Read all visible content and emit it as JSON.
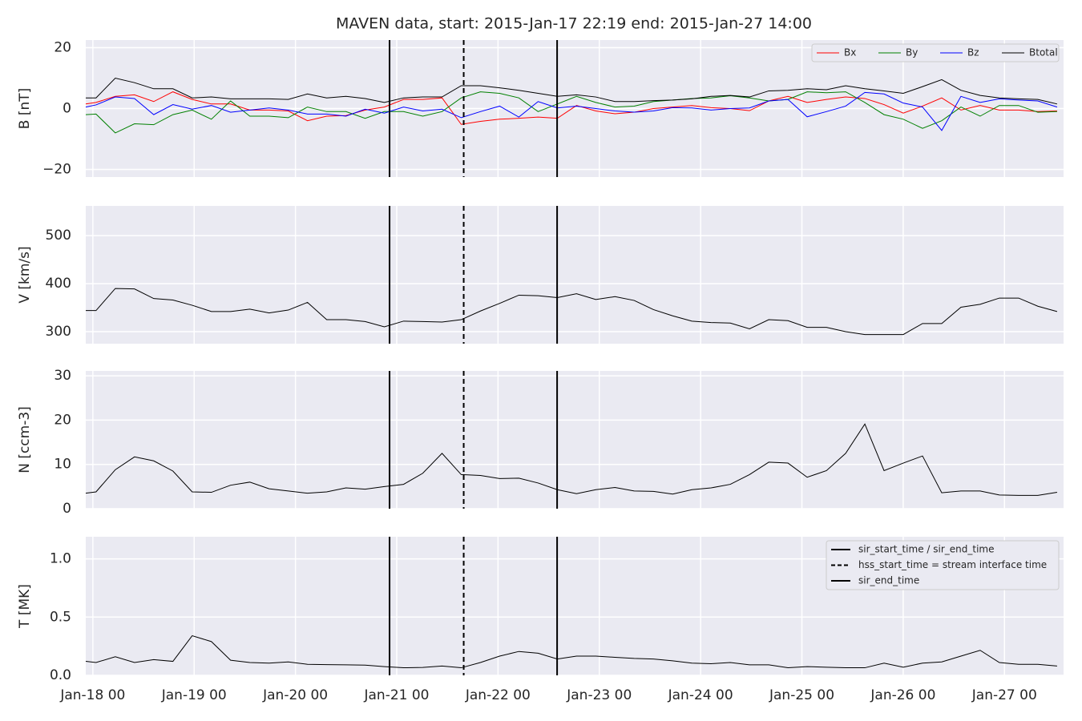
{
  "chart_data": [
    {
      "type": "line",
      "title": "MAVEN data, start: 2015-Jan-17 22:19  end: 2015-Jan-27 14:00",
      "ylabel": "B [nT]",
      "ylim": [
        -22.5,
        22.5
      ],
      "yticks": [
        {
          "value": -20,
          "label": "−20"
        },
        0,
        20
      ],
      "grid": true,
      "legend": "upper right",
      "series": [
        {
          "name": "Bx",
          "color": "#ff0000",
          "values": [
            1.5,
            2,
            4,
            4.5,
            2.3,
            5.5,
            3,
            1.5,
            1.5,
            -0.5,
            -0.5,
            -0.8,
            -4,
            -2.5,
            -2.3,
            -0.5,
            0.5,
            3,
            3,
            3.5,
            -5.2,
            -4.2,
            -3.5,
            -3.2,
            -2.8,
            -3.2,
            1,
            -0.8,
            -1.7,
            -1.2,
            0,
            0.5,
            1,
            0.3,
            0,
            -0.7,
            2.5,
            4,
            2,
            3,
            3.8,
            3.3,
            1.3,
            -1.5,
            0.8,
            3.5,
            -0.5,
            1,
            -0.5,
            -0.5,
            -1,
            -0.8
          ]
        },
        {
          "name": "By",
          "color": "#008000",
          "values": [
            -2,
            -1.8,
            -8,
            -5,
            -5.3,
            -2,
            -0.5,
            -3.5,
            2.5,
            -2.5,
            -2.5,
            -3,
            0.5,
            -1,
            -1,
            -3.2,
            -1,
            -1,
            -2.5,
            -1,
            3.5,
            5.5,
            5,
            3.5,
            -1,
            1.5,
            4,
            2,
            0.5,
            0.8,
            2.3,
            2.8,
            3.3,
            3.5,
            4.2,
            3.5,
            2.5,
            3,
            5.5,
            5.2,
            5.5,
            2,
            -2,
            -3.5,
            -6.5,
            -4,
            0.5,
            -2.5,
            1,
            1,
            -1.2,
            -1
          ]
        },
        {
          "name": "Bz",
          "color": "#0000ff",
          "values": [
            0.5,
            1.2,
            3.8,
            3.3,
            -2,
            1.3,
            -0.2,
            1,
            -1.2,
            -0.5,
            0.2,
            -0.5,
            -1.8,
            -1.8,
            -2.5,
            -0.2,
            -1.5,
            0.5,
            -0.8,
            -0.2,
            -3,
            -1,
            0.8,
            -2.8,
            2.3,
            0.2,
            0.8,
            0,
            -0.8,
            -1.2,
            -0.8,
            0.3,
            0.2,
            -0.5,
            0,
            0.2,
            2.5,
            3,
            -2.7,
            -1,
            0.8,
            5.3,
            4.8,
            1.8,
            0.5,
            -7.2,
            4,
            2,
            3.2,
            2.8,
            2.5,
            0.5
          ]
        },
        {
          "name": "Btotal",
          "color": "#000000",
          "values": [
            3.5,
            3.5,
            10,
            8.5,
            6.5,
            6.5,
            3.5,
            3.8,
            3.2,
            3.2,
            3.2,
            3.0,
            4.8,
            3.5,
            4.0,
            3.3,
            2.0,
            3.5,
            3.8,
            3.8,
            7.5,
            7.5,
            6.8,
            6.0,
            5.0,
            4.0,
            4.5,
            3.8,
            2.3,
            2.3,
            2.6,
            2.8,
            3.2,
            4.0,
            4.3,
            3.8,
            5.8,
            6.0,
            6.5,
            6.2,
            7.5,
            6.5,
            5.8,
            5.0,
            7.2,
            9.5,
            6.0,
            4.3,
            3.5,
            3.2,
            3.0,
            1.5
          ]
        }
      ]
    },
    {
      "type": "line",
      "ylabel": "V [km/s]",
      "ylim": [
        275,
        562
      ],
      "yticks": [
        300,
        400,
        500
      ],
      "grid": true,
      "color": "#000000",
      "values": [
        344,
        344,
        390,
        389,
        369,
        366,
        355,
        342,
        342,
        347,
        339,
        345,
        361,
        325,
        325,
        321,
        310,
        322,
        321,
        320,
        325,
        343,
        359,
        376,
        375,
        371,
        379,
        367,
        373,
        365,
        346,
        333,
        322,
        319,
        318,
        306,
        325,
        323,
        309,
        309,
        300,
        294,
        294,
        294,
        317,
        317,
        351,
        357,
        370,
        370,
        353,
        342
      ]
    },
    {
      "type": "line",
      "ylabel": "N [ccm-3]",
      "ylim": [
        0,
        31.1
      ],
      "yticks": [
        0,
        10,
        20,
        30
      ],
      "grid": true,
      "color": "#000000",
      "values": [
        3.5,
        3.8,
        8.8,
        11.7,
        10.8,
        8.5,
        3.8,
        3.7,
        5.3,
        6.0,
        4.5,
        4.0,
        3.5,
        3.8,
        4.7,
        4.4,
        5.0,
        5.5,
        8.0,
        12.5,
        7.7,
        7.5,
        6.8,
        6.9,
        5.8,
        4.3,
        3.4,
        4.3,
        4.8,
        4.0,
        3.9,
        3.3,
        4.3,
        4.7,
        5.5,
        7.7,
        10.5,
        10.3,
        7.1,
        8.6,
        12.5,
        19.1,
        8.6,
        10.3,
        11.9,
        3.6,
        4.0,
        4.0,
        3.1,
        3.0,
        3.0,
        3.7
      ]
    },
    {
      "type": "line",
      "ylabel": "T [MK]",
      "ylim": [
        0,
        1.19
      ],
      "yticks": [
        {
          "value": 0,
          "label": "0.0"
        },
        0.5,
        {
          "value": 1,
          "label": "1.0"
        }
      ],
      "grid": true,
      "color": "#000000",
      "legend": "upper right",
      "values": [
        0.12,
        0.11,
        0.16,
        0.11,
        0.135,
        0.12,
        0.34,
        0.29,
        0.13,
        0.11,
        0.105,
        0.115,
        0.095,
        0.092,
        0.09,
        0.088,
        0.075,
        0.065,
        0.068,
        0.08,
        0.065,
        0.11,
        0.165,
        0.205,
        0.19,
        0.14,
        0.165,
        0.165,
        0.155,
        0.145,
        0.14,
        0.125,
        0.105,
        0.1,
        0.11,
        0.09,
        0.09,
        0.065,
        0.075,
        0.07,
        0.065,
        0.065,
        0.105,
        0.07,
        0.105,
        0.115,
        0.165,
        0.215,
        0.11,
        0.095,
        0.095,
        0.08
      ],
      "x": [
        "2015-01-17 22:19",
        "2015-01-18 00:45",
        "2015-01-18 05:19",
        "2015-01-18 09:52",
        "2015-01-18 14:25",
        "2015-01-18 18:58",
        "2015-01-18 23:32",
        "2015-01-19 04:05",
        "2015-01-19 08:38",
        "2015-01-19 13:11",
        "2015-01-19 17:45",
        "2015-01-19 22:18",
        "2015-01-20 02:51",
        "2015-01-20 07:24",
        "2015-01-20 11:58",
        "2015-01-20 16:31",
        "2015-01-20 21:04",
        "2015-01-21 01:37",
        "2015-01-21 06:10",
        "2015-01-21 10:44",
        "2015-01-21 15:17",
        "2015-01-21 19:50",
        "2015-01-22 00:23",
        "2015-01-22 04:56",
        "2015-01-22 09:30",
        "2015-01-22 14:03",
        "2015-01-22 18:36",
        "2015-01-22 23:10",
        "2015-01-23 03:43",
        "2015-01-23 08:16",
        "2015-01-23 12:49",
        "2015-01-23 17:23",
        "2015-01-23 21:56",
        "2015-01-24 02:29",
        "2015-01-24 07:02",
        "2015-01-24 11:35",
        "2015-01-24 16:09",
        "2015-01-24 20:42",
        "2015-01-25 01:15",
        "2015-01-25 05:49",
        "2015-01-25 10:22",
        "2015-01-25 14:55",
        "2015-01-25 19:28",
        "2015-01-26 00:01",
        "2015-01-26 04:35",
        "2015-01-26 09:08",
        "2015-01-26 13:41",
        "2015-01-26 18:14",
        "2015-01-26 22:47",
        "2015-01-27 03:21",
        "2015-01-27 07:54",
        "2015-01-27 12:28"
      ],
      "xlim": [
        "2015-01-17 22:19",
        "2015-01-27 14:00"
      ],
      "xticks": [
        {
          "value": "2015-01-18 00:00",
          "label": "Jan-18 00"
        },
        {
          "value": "2015-01-19 00:00",
          "label": "Jan-19 00"
        },
        {
          "value": "2015-01-20 00:00",
          "label": "Jan-20 00"
        },
        {
          "value": "2015-01-21 00:00",
          "label": "Jan-21 00"
        },
        {
          "value": "2015-01-22 00:00",
          "label": "Jan-22 00"
        },
        {
          "value": "2015-01-23 00:00",
          "label": "Jan-23 00"
        },
        {
          "value": "2015-01-24 00:00",
          "label": "Jan-24 00"
        },
        {
          "value": "2015-01-25 00:00",
          "label": "Jan-25 00"
        },
        {
          "value": "2015-01-26 00:00",
          "label": "Jan-26 00"
        },
        {
          "value": "2015-01-27 00:00",
          "label": "Jan-27 00"
        }
      ],
      "vlines": [
        {
          "x": "2015-01-20 22:18",
          "style": "solid",
          "name": "sir_start_time / sir_end_time"
        },
        {
          "x": "2015-01-21 15:52",
          "style": "dashed",
          "name": "hss_start_time = stream interface time"
        },
        {
          "x": "2015-01-22 14:00",
          "style": "solid",
          "name": "sir_end_time"
        }
      ]
    }
  ]
}
